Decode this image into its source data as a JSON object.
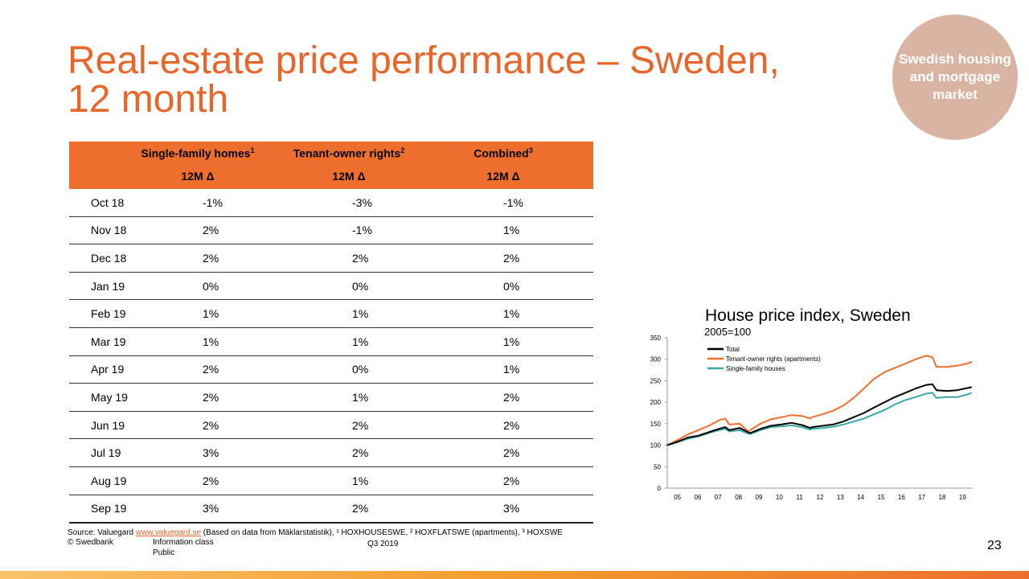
{
  "title": {
    "line1": "Real-estate price performance – Sweden,",
    "line2": "12 month"
  },
  "badge": {
    "text": "Swedish housing and mortgage market"
  },
  "table": {
    "headers": [
      {
        "name": "Single-family homes",
        "sup": "1",
        "sub": "12M Δ"
      },
      {
        "name": "Tenant-owner rights",
        "sup": "2",
        "sub": "12M Δ"
      },
      {
        "name": "Combined",
        "sup": "3",
        "sub": "12M Δ"
      }
    ],
    "rows": [
      [
        "Oct 18",
        "-1%",
        "-3%",
        "-1%"
      ],
      [
        "Nov 18",
        "2%",
        "-1%",
        "1%"
      ],
      [
        "Dec 18",
        "2%",
        "2%",
        "2%"
      ],
      [
        "Jan 19",
        "0%",
        "0%",
        "0%"
      ],
      [
        "Feb 19",
        "1%",
        "1%",
        "1%"
      ],
      [
        "Mar 19",
        "1%",
        "1%",
        "1%"
      ],
      [
        "Apr 19",
        "2%",
        "0%",
        "1%"
      ],
      [
        "May 19",
        "2%",
        "1%",
        "2%"
      ],
      [
        "Jun 19",
        "2%",
        "2%",
        "2%"
      ],
      [
        "Jul 19",
        "3%",
        "2%",
        "2%"
      ],
      [
        "Aug 19",
        "2%",
        "1%",
        "2%"
      ],
      [
        "Sep 19",
        "3%",
        "2%",
        "3%"
      ]
    ]
  },
  "chart_data": {
    "type": "line",
    "title": "House price index, Sweden",
    "subtitle": "2005=100",
    "ylim": [
      0,
      350
    ],
    "yticks": [
      0,
      50,
      100,
      150,
      200,
      250,
      300,
      350
    ],
    "xticks": [
      "05",
      "06",
      "07",
      "08",
      "09",
      "10",
      "11",
      "12",
      "13",
      "14",
      "15",
      "16",
      "17",
      "18",
      "19"
    ],
    "xlim": [
      2005,
      2019.75
    ],
    "legend_position": "top-left",
    "series": [
      {
        "name": "Total",
        "color": "#000000",
        "points": [
          [
            2005,
            100
          ],
          [
            2005.5,
            108
          ],
          [
            2006,
            118
          ],
          [
            2006.5,
            122
          ],
          [
            2007,
            130
          ],
          [
            2007.5,
            138
          ],
          [
            2007.8,
            142
          ],
          [
            2008,
            135
          ],
          [
            2008.5,
            140
          ],
          [
            2008.9,
            130
          ],
          [
            2009,
            128
          ],
          [
            2009.5,
            138
          ],
          [
            2010,
            145
          ],
          [
            2010.5,
            148
          ],
          [
            2011,
            152
          ],
          [
            2011.5,
            147
          ],
          [
            2011.9,
            140
          ],
          [
            2012,
            142
          ],
          [
            2012.5,
            145
          ],
          [
            2013,
            148
          ],
          [
            2013.5,
            155
          ],
          [
            2014,
            165
          ],
          [
            2014.5,
            175
          ],
          [
            2015,
            188
          ],
          [
            2015.5,
            200
          ],
          [
            2016,
            212
          ],
          [
            2016.5,
            222
          ],
          [
            2017,
            232
          ],
          [
            2017.5,
            240
          ],
          [
            2017.8,
            242
          ],
          [
            2018,
            228
          ],
          [
            2018.5,
            226
          ],
          [
            2019,
            228
          ],
          [
            2019.5,
            233
          ],
          [
            2019.7,
            235
          ]
        ]
      },
      {
        "name": "Tenant-owner rights (apartments)",
        "color": "#ee6f2d",
        "points": [
          [
            2005,
            100
          ],
          [
            2005.5,
            112
          ],
          [
            2006,
            125
          ],
          [
            2006.5,
            135
          ],
          [
            2007,
            145
          ],
          [
            2007.5,
            158
          ],
          [
            2007.8,
            162
          ],
          [
            2008,
            148
          ],
          [
            2008.5,
            150
          ],
          [
            2008.9,
            132
          ],
          [
            2009,
            135
          ],
          [
            2009.5,
            150
          ],
          [
            2010,
            160
          ],
          [
            2010.5,
            165
          ],
          [
            2011,
            170
          ],
          [
            2011.5,
            168
          ],
          [
            2011.9,
            162
          ],
          [
            2012,
            165
          ],
          [
            2012.5,
            172
          ],
          [
            2013,
            180
          ],
          [
            2013.5,
            192
          ],
          [
            2014,
            210
          ],
          [
            2014.5,
            232
          ],
          [
            2015,
            255
          ],
          [
            2015.5,
            270
          ],
          [
            2016,
            280
          ],
          [
            2016.5,
            290
          ],
          [
            2017,
            300
          ],
          [
            2017.5,
            308
          ],
          [
            2017.8,
            305
          ],
          [
            2018,
            282
          ],
          [
            2018.5,
            282
          ],
          [
            2019,
            285
          ],
          [
            2019.5,
            290
          ],
          [
            2019.7,
            294
          ]
        ]
      },
      {
        "name": "Single-family houses",
        "color": "#3aa7a8",
        "points": [
          [
            2005,
            100
          ],
          [
            2005.5,
            107
          ],
          [
            2006,
            115
          ],
          [
            2006.5,
            120
          ],
          [
            2007,
            128
          ],
          [
            2007.5,
            135
          ],
          [
            2007.8,
            138
          ],
          [
            2008,
            132
          ],
          [
            2008.5,
            135
          ],
          [
            2008.9,
            127
          ],
          [
            2009,
            126
          ],
          [
            2009.5,
            135
          ],
          [
            2010,
            142
          ],
          [
            2010.5,
            144
          ],
          [
            2011,
            146
          ],
          [
            2011.5,
            142
          ],
          [
            2011.9,
            136
          ],
          [
            2012,
            138
          ],
          [
            2012.5,
            140
          ],
          [
            2013,
            143
          ],
          [
            2013.5,
            148
          ],
          [
            2014,
            155
          ],
          [
            2014.5,
            162
          ],
          [
            2015,
            172
          ],
          [
            2015.5,
            182
          ],
          [
            2016,
            195
          ],
          [
            2016.5,
            205
          ],
          [
            2017,
            212
          ],
          [
            2017.5,
            220
          ],
          [
            2017.8,
            222
          ],
          [
            2018,
            210
          ],
          [
            2018.5,
            212
          ],
          [
            2019,
            212
          ],
          [
            2019.5,
            218
          ],
          [
            2019.7,
            222
          ]
        ]
      }
    ]
  },
  "footer": {
    "source_prefix": "Source:  Valuegard ",
    "source_link": "www.valuegard.se",
    "source_suffix": " (Based on data from Mäklarstatistik), ¹ HOXHOUSESWE, ² HOXFLATSWE (apartments), ³ HOXSWE",
    "copyright": "© Swedbank",
    "info_class": "Information class",
    "info_value": "Public",
    "quarter": "Q3 2019",
    "page": "23"
  }
}
